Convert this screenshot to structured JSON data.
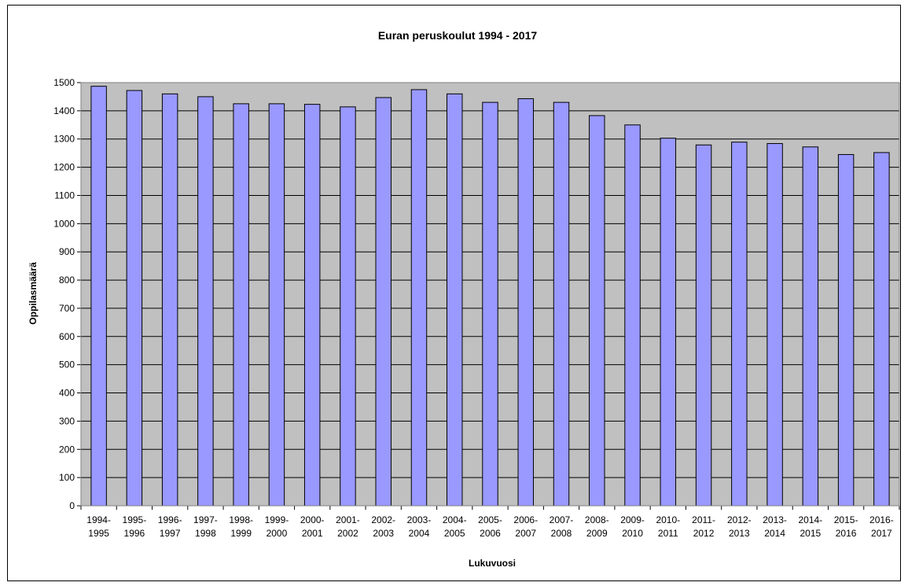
{
  "chart_data": {
    "type": "bar",
    "title": "Euran peruskoulut 1994 - 2017",
    "xlabel": "Lukuvuosi",
    "ylabel": "Oppilasmäärä",
    "ylim": [
      0,
      1500
    ],
    "yticks": [
      "0",
      "100",
      "200",
      "300",
      "400",
      "500",
      "600",
      "700",
      "800",
      "900",
      "1000",
      "1100",
      "1200",
      "1300",
      "1400",
      "1500"
    ],
    "grid": true,
    "categories": [
      [
        "1994-",
        "1995"
      ],
      [
        "1995-",
        "1996"
      ],
      [
        "1996-",
        "1997"
      ],
      [
        "1997-",
        "1998"
      ],
      [
        "1998-",
        "1999"
      ],
      [
        "1999-",
        "2000"
      ],
      [
        "2000-",
        "2001"
      ],
      [
        "2001-",
        "2002"
      ],
      [
        "2002-",
        "2003"
      ],
      [
        "2003-",
        "2004"
      ],
      [
        "2004-",
        "2005"
      ],
      [
        "2005-",
        "2006"
      ],
      [
        "2006-",
        "2007"
      ],
      [
        "2007-",
        "2008"
      ],
      [
        "2008-",
        "2009"
      ],
      [
        "2009-",
        "2010"
      ],
      [
        "2010-",
        "2011"
      ],
      [
        "2011-",
        "2012"
      ],
      [
        "2012-",
        "2013"
      ],
      [
        "2013-",
        "2014"
      ],
      [
        "2014-",
        "2015"
      ],
      [
        "2015-",
        "2016"
      ],
      [
        "2016-",
        "2017"
      ]
    ],
    "values": [
      1487,
      1472,
      1460,
      1450,
      1425,
      1425,
      1423,
      1414,
      1447,
      1475,
      1460,
      1430,
      1443,
      1430,
      1383,
      1350,
      1303,
      1279,
      1289,
      1284,
      1272,
      1245,
      1252
    ],
    "colors": {
      "bar": "#9999ff",
      "plot_bg": "#c0c0c0",
      "grid": "#000000"
    }
  }
}
